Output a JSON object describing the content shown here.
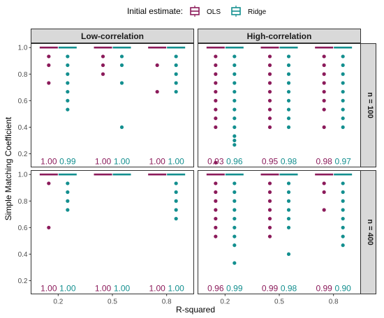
{
  "legend": {
    "title": "Initial estimate:",
    "items": [
      {
        "name": "OLS",
        "color": "#8b1a5a"
      },
      {
        "name": "Ridge",
        "color": "#138f8f"
      }
    ]
  },
  "chart_data": {
    "type": "boxplot",
    "xlabel": "R-squared",
    "ylabel": "Simple Matching Coefficient",
    "x_categories": [
      "0.2",
      "0.5",
      "0.8"
    ],
    "y_ticks": [
      "0.2",
      "0.4",
      "0.6",
      "0.8",
      "1.0"
    ],
    "ylim": [
      0.1,
      1.03
    ],
    "col_strips": [
      "Low-correlation",
      "High-correlation"
    ],
    "row_strips": [
      "n = 100",
      "n = 400"
    ],
    "series_colors": {
      "OLS": "#8b1a5a",
      "Ridge": "#138f8f"
    },
    "panels": [
      {
        "col": "Low-correlation",
        "row": "n = 100",
        "groups": [
          {
            "x": "0.2",
            "OLS": {
              "box": 1.0,
              "outliers": [
                0.933,
                0.867,
                0.733
              ],
              "label": "1.00"
            },
            "Ridge": {
              "box": 1.0,
              "outliers": [
                0.933,
                0.867,
                0.8,
                0.733,
                0.667,
                0.6,
                0.533
              ],
              "label": "0.99"
            }
          },
          {
            "x": "0.5",
            "OLS": {
              "box": 1.0,
              "outliers": [
                0.933,
                0.867,
                0.8
              ],
              "label": "1.00"
            },
            "Ridge": {
              "box": 1.0,
              "outliers": [
                0.933,
                0.867,
                0.733,
                0.4
              ],
              "label": "1.00"
            }
          },
          {
            "x": "0.8",
            "OLS": {
              "box": 1.0,
              "outliers": [
                0.867,
                0.667
              ],
              "label": "1.00"
            },
            "Ridge": {
              "box": 1.0,
              "outliers": [
                0.933,
                0.867,
                0.8,
                0.733,
                0.667
              ],
              "label": "1.00"
            }
          }
        ]
      },
      {
        "col": "High-correlation",
        "row": "n = 100",
        "groups": [
          {
            "x": "0.2",
            "OLS": {
              "box": 1.0,
              "outliers": [
                0.933,
                0.867,
                0.8,
                0.733,
                0.667,
                0.6,
                0.533,
                0.467,
                0.4,
                0.133
              ],
              "label": "0.93"
            },
            "Ridge": {
              "box": 1.0,
              "outliers": [
                0.933,
                0.867,
                0.8,
                0.733,
                0.667,
                0.6,
                0.533,
                0.467,
                0.4,
                0.333,
                0.3,
                0.267
              ],
              "label": "0.96"
            }
          },
          {
            "x": "0.5",
            "OLS": {
              "box": 1.0,
              "outliers": [
                0.933,
                0.867,
                0.8,
                0.733,
                0.667,
                0.6,
                0.533,
                0.467,
                0.4
              ],
              "label": "0.95"
            },
            "Ridge": {
              "box": 1.0,
              "outliers": [
                0.933,
                0.867,
                0.8,
                0.733,
                0.667,
                0.6,
                0.533,
                0.467,
                0.4
              ],
              "label": "0.98"
            }
          },
          {
            "x": "0.8",
            "OLS": {
              "box": 1.0,
              "outliers": [
                0.933,
                0.867,
                0.8,
                0.733,
                0.667,
                0.6,
                0.533,
                0.4
              ],
              "label": "0.98"
            },
            "Ridge": {
              "box": 1.0,
              "outliers": [
                0.933,
                0.867,
                0.8,
                0.733,
                0.667,
                0.6,
                0.533,
                0.467,
                0.4
              ],
              "label": "0.97"
            }
          }
        ]
      },
      {
        "col": "Low-correlation",
        "row": "n = 400",
        "groups": [
          {
            "x": "0.2",
            "OLS": {
              "box": 1.0,
              "outliers": [
                0.933,
                0.6
              ],
              "label": "1.00"
            },
            "Ridge": {
              "box": 1.0,
              "outliers": [
                0.933,
                0.867,
                0.8,
                0.733
              ],
              "label": "1.00"
            }
          },
          {
            "x": "0.5",
            "OLS": {
              "box": 1.0,
              "outliers": [],
              "label": "1.00"
            },
            "Ridge": {
              "box": 1.0,
              "outliers": [],
              "label": "1.00"
            }
          },
          {
            "x": "0.8",
            "OLS": {
              "box": 1.0,
              "outliers": [],
              "label": "1.00"
            },
            "Ridge": {
              "box": 1.0,
              "outliers": [
                0.933,
                0.867,
                0.8,
                0.733,
                0.667
              ],
              "label": "1.00"
            }
          }
        ]
      },
      {
        "col": "High-correlation",
        "row": "n = 400",
        "groups": [
          {
            "x": "0.2",
            "OLS": {
              "box": 1.0,
              "outliers": [
                0.933,
                0.867,
                0.8,
                0.733,
                0.667,
                0.6,
                0.533
              ],
              "label": "0.96"
            },
            "Ridge": {
              "box": 1.0,
              "outliers": [
                0.933,
                0.867,
                0.8,
                0.733,
                0.667,
                0.6,
                0.533,
                0.467,
                0.333
              ],
              "label": "0.99"
            }
          },
          {
            "x": "0.5",
            "OLS": {
              "box": 1.0,
              "outliers": [
                0.933,
                0.867,
                0.8,
                0.733,
                0.667,
                0.6,
                0.533
              ],
              "label": "0.99"
            },
            "Ridge": {
              "box": 1.0,
              "outliers": [
                0.933,
                0.867,
                0.8,
                0.733,
                0.667,
                0.6,
                0.4
              ],
              "label": "0.98"
            }
          },
          {
            "x": "0.8",
            "OLS": {
              "box": 1.0,
              "outliers": [
                0.933,
                0.867,
                0.733
              ],
              "label": "0.99"
            },
            "Ridge": {
              "box": 1.0,
              "outliers": [
                0.933,
                0.867,
                0.8,
                0.733,
                0.667,
                0.6,
                0.533,
                0.467
              ],
              "label": "0.90"
            }
          }
        ]
      }
    ]
  }
}
